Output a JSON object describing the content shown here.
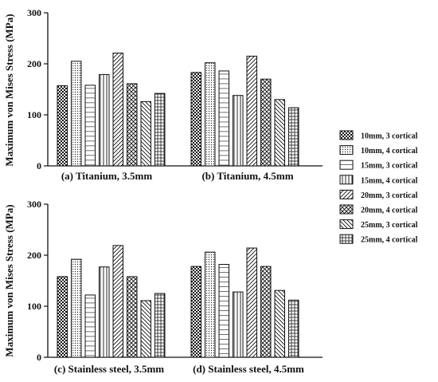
{
  "chart_data": {
    "type": "bar",
    "ylabel": "Maximum von Mises Stress (MPa)",
    "ylim": [
      0,
      300
    ],
    "yticks": [
      0,
      100,
      200,
      300
    ],
    "legend_position": "right",
    "series_names": [
      "10mm, 3 cortical",
      "10mm, 4 cortical",
      "15mm, 3 cortical",
      "15mm, 4 cortical",
      "20mm, 3 cortical",
      "20mm, 4 cortical",
      "25mm, 3 cortical",
      "25mm, 4 cortical"
    ],
    "patterns": [
      "checker",
      "dots",
      "hlines",
      "vlines",
      "fdiag",
      "crossdiag",
      "bdiag",
      "grid"
    ],
    "panels": [
      {
        "label": "(a) Titanium, 3.5mm",
        "values": [
          157,
          205,
          158,
          179,
          221,
          161,
          126,
          142
        ]
      },
      {
        "label": "(b) Titanium, 4.5mm",
        "values": [
          183,
          202,
          186,
          138,
          215,
          170,
          130,
          114
        ]
      },
      {
        "label": "(c) Stainless steel, 3.5mm",
        "values": [
          158,
          192,
          122,
          177,
          219,
          158,
          111,
          125
        ]
      },
      {
        "label": "(d) Stainless steel, 4.5mm",
        "values": [
          178,
          206,
          182,
          128,
          214,
          178,
          131,
          112
        ]
      }
    ]
  }
}
